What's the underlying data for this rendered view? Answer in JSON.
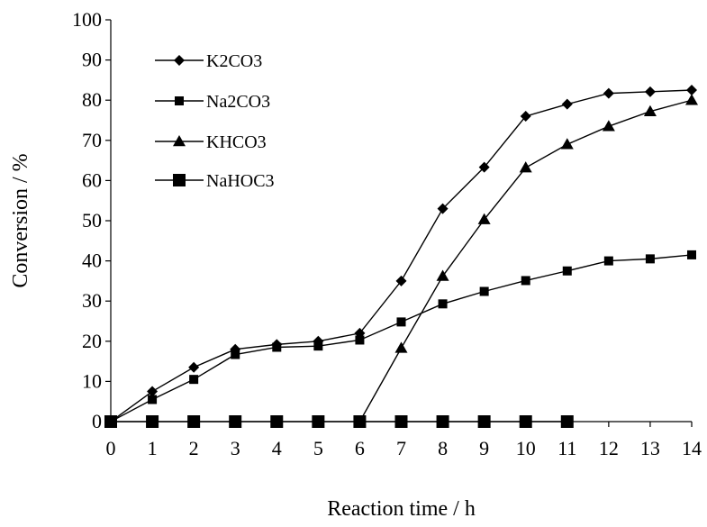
{
  "chart_data": {
    "type": "line",
    "title": "",
    "xlabel": "Reaction time / h",
    "ylabel": "Conversion / %",
    "xlim": [
      0,
      14
    ],
    "ylim": [
      0,
      100
    ],
    "x_ticks": [
      "0",
      "1",
      "2",
      "3",
      "4",
      "5",
      "6",
      "7",
      "8",
      "9",
      "10",
      "11",
      "12",
      "13",
      "14"
    ],
    "y_ticks": [
      "0",
      "10",
      "20",
      "30",
      "40",
      "50",
      "60",
      "70",
      "80",
      "90",
      "100"
    ],
    "grid": false,
    "legend_position": "top-left",
    "series": [
      {
        "name": "K2CO3",
        "marker": "diamond",
        "x": [
          0,
          1,
          2,
          3,
          4,
          5,
          6,
          7,
          8,
          9,
          10,
          11,
          12,
          13,
          14
        ],
        "y": [
          0,
          7.5,
          13.5,
          18,
          19.2,
          20,
          22,
          35,
          53,
          63.3,
          76,
          79,
          81.7,
          82.1,
          82.5
        ]
      },
      {
        "name": "Na2CO3",
        "marker": "square",
        "x": [
          0,
          1,
          2,
          3,
          4,
          5,
          6,
          7,
          8,
          9,
          10,
          11,
          12,
          13,
          14
        ],
        "y": [
          0,
          5.5,
          10.5,
          16.7,
          18.5,
          18.8,
          20.3,
          24.8,
          29.3,
          32.4,
          35.1,
          37.5,
          40,
          40.5,
          41.5
        ]
      },
      {
        "name": "KHCO3",
        "marker": "triangle",
        "x": [
          6,
          7,
          8,
          9,
          10,
          11,
          12,
          13,
          14
        ],
        "y": [
          0,
          18.3,
          36.2,
          50.3,
          63.2,
          69,
          73.5,
          77.2,
          80
        ]
      },
      {
        "name": "NaHOC3",
        "marker": "square-large",
        "x": [
          0,
          1,
          2,
          3,
          4,
          5,
          6,
          7,
          8,
          9,
          10,
          11
        ],
        "y": [
          0,
          0,
          0,
          0,
          0,
          0,
          0,
          0,
          0,
          0,
          0,
          0
        ]
      }
    ]
  }
}
